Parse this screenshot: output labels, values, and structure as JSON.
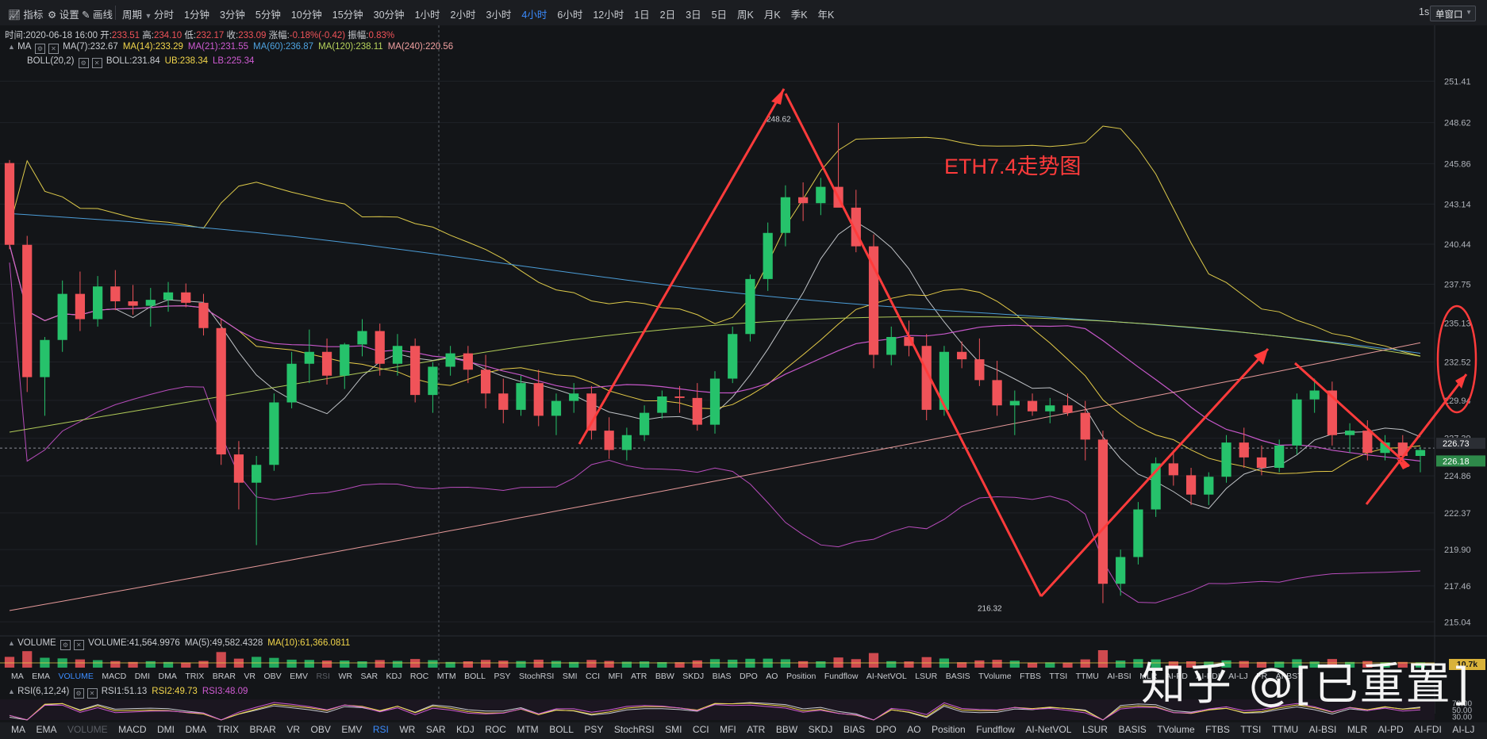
{
  "toolbar": {
    "left": [
      "指标",
      "设置",
      "画线"
    ],
    "period_label": "周期",
    "periods": [
      "分时",
      "1分钟",
      "3分钟",
      "5分钟",
      "10分钟",
      "15分钟",
      "30分钟",
      "1小时",
      "2小时",
      "3小时",
      "4小时",
      "6小时",
      "12小时",
      "1日",
      "2日",
      "3日",
      "5日",
      "周K",
      "月K",
      "季K",
      "年K"
    ],
    "active_period": "4小时",
    "right_label": "1s",
    "window_label": "单窗口"
  },
  "ohlc_line": {
    "time": "时间:2020-06-18 16:00",
    "open_label": "开:",
    "open": "233.51",
    "high_label": "高:",
    "high": "234.10",
    "low_label": "低:",
    "low": "232.17",
    "close_label": "收:",
    "close": "233.09",
    "change_label": "涨幅:",
    "change": "-0.18%(-0.42)",
    "amp_label": "振幅:",
    "amp": "0.83%"
  },
  "ma_line": {
    "name": "MA",
    "items": [
      {
        "text": "MA(7):232.67",
        "color": "#c9ccd1"
      },
      {
        "text": "MA(14):233.29",
        "color": "#f2d64b"
      },
      {
        "text": "MA(21):231.55",
        "color": "#d05bd3"
      },
      {
        "text": "MA(60):236.87",
        "color": "#4ea3e0"
      },
      {
        "text": "MA(120):238.11",
        "color": "#b8d45c"
      },
      {
        "text": "MA(240):220.56",
        "color": "#f0a0a0"
      }
    ]
  },
  "boll_line": {
    "name": "BOLL(20,2)",
    "items": [
      {
        "text": "BOLL:231.84",
        "color": "#c9ccd1"
      },
      {
        "text": "UB:238.34",
        "color": "#f2d64b"
      },
      {
        "text": "LB:225.34",
        "color": "#d05bd3"
      }
    ]
  },
  "annotation": "ETH7.4走势图",
  "chart_data": {
    "type": "candlestick",
    "ylim": [
      214.2,
      252.6
    ],
    "y_ticks": [
      "251.41",
      "248.62",
      "245.86",
      "243.14",
      "240.44",
      "237.75",
      "235.13",
      "232.52",
      "229.94",
      "227.39",
      "224.86",
      "222.37",
      "219.90",
      "217.46",
      "215.04"
    ],
    "current_price_tags": [
      "226.73",
      "226.18"
    ],
    "high_marker": "248.62",
    "low_marker": "216.32",
    "candles": [
      {
        "o": 245.9,
        "h": 246.1,
        "l": 240.1,
        "c": 240.4
      },
      {
        "o": 240.4,
        "h": 241.0,
        "l": 230.5,
        "c": 231.5
      },
      {
        "o": 231.5,
        "h": 234.2,
        "l": 228.9,
        "c": 234.0
      },
      {
        "o": 234.0,
        "h": 238.0,
        "l": 233.2,
        "c": 237.1
      },
      {
        "o": 237.1,
        "h": 238.6,
        "l": 234.6,
        "c": 235.4
      },
      {
        "o": 235.4,
        "h": 238.3,
        "l": 234.9,
        "c": 237.6
      },
      {
        "o": 237.6,
        "h": 238.7,
        "l": 236.0,
        "c": 236.6
      },
      {
        "o": 236.6,
        "h": 237.7,
        "l": 235.7,
        "c": 236.3
      },
      {
        "o": 236.3,
        "h": 237.5,
        "l": 234.9,
        "c": 236.7
      },
      {
        "o": 236.7,
        "h": 237.9,
        "l": 235.9,
        "c": 237.2
      },
      {
        "o": 237.2,
        "h": 237.8,
        "l": 236.2,
        "c": 236.5
      },
      {
        "o": 236.5,
        "h": 237.1,
        "l": 234.3,
        "c": 234.8
      },
      {
        "o": 234.8,
        "h": 235.4,
        "l": 225.6,
        "c": 226.3
      },
      {
        "o": 226.3,
        "h": 227.2,
        "l": 222.6,
        "c": 224.4
      },
      {
        "o": 224.4,
        "h": 226.2,
        "l": 220.2,
        "c": 225.6
      },
      {
        "o": 225.6,
        "h": 230.4,
        "l": 225.2,
        "c": 229.8
      },
      {
        "o": 229.8,
        "h": 233.2,
        "l": 229.4,
        "c": 232.4
      },
      {
        "o": 232.4,
        "h": 234.7,
        "l": 231.1,
        "c": 233.2
      },
      {
        "o": 233.2,
        "h": 234.1,
        "l": 231.0,
        "c": 231.6
      },
      {
        "o": 231.6,
        "h": 233.8,
        "l": 230.7,
        "c": 233.7
      },
      {
        "o": 233.7,
        "h": 235.4,
        "l": 232.9,
        "c": 234.6
      },
      {
        "o": 234.6,
        "h": 235.1,
        "l": 231.6,
        "c": 232.4
      },
      {
        "o": 232.4,
        "h": 234.4,
        "l": 231.6,
        "c": 233.6
      },
      {
        "o": 233.6,
        "h": 234.1,
        "l": 229.8,
        "c": 230.3
      },
      {
        "o": 230.3,
        "h": 232.5,
        "l": 229.1,
        "c": 232.2
      },
      {
        "o": 232.2,
        "h": 233.6,
        "l": 231.6,
        "c": 233.1
      },
      {
        "o": 233.1,
        "h": 233.6,
        "l": 231.1,
        "c": 232.0
      },
      {
        "o": 232.0,
        "h": 233.0,
        "l": 229.4,
        "c": 230.4
      },
      {
        "o": 230.4,
        "h": 231.4,
        "l": 228.4,
        "c": 229.3
      },
      {
        "o": 229.3,
        "h": 231.6,
        "l": 228.9,
        "c": 231.1
      },
      {
        "o": 231.1,
        "h": 232.0,
        "l": 228.2,
        "c": 228.9
      },
      {
        "o": 228.9,
        "h": 230.4,
        "l": 227.6,
        "c": 229.9
      },
      {
        "o": 229.9,
        "h": 231.1,
        "l": 229.1,
        "c": 230.4
      },
      {
        "o": 230.4,
        "h": 230.9,
        "l": 227.3,
        "c": 227.9
      },
      {
        "o": 227.9,
        "h": 228.8,
        "l": 226.0,
        "c": 226.6
      },
      {
        "o": 226.6,
        "h": 228.1,
        "l": 225.9,
        "c": 227.6
      },
      {
        "o": 227.6,
        "h": 229.6,
        "l": 227.2,
        "c": 229.1
      },
      {
        "o": 229.1,
        "h": 230.6,
        "l": 228.7,
        "c": 230.2
      },
      {
        "o": 230.2,
        "h": 230.9,
        "l": 229.1,
        "c": 230.1
      },
      {
        "o": 230.1,
        "h": 231.1,
        "l": 227.9,
        "c": 228.3
      },
      {
        "o": 228.3,
        "h": 231.9,
        "l": 227.7,
        "c": 231.4
      },
      {
        "o": 231.4,
        "h": 234.9,
        "l": 231.1,
        "c": 234.4
      },
      {
        "o": 234.4,
        "h": 238.4,
        "l": 233.9,
        "c": 238.1
      },
      {
        "o": 238.1,
        "h": 241.9,
        "l": 237.3,
        "c": 241.2
      },
      {
        "o": 241.2,
        "h": 244.4,
        "l": 240.3,
        "c": 243.6
      },
      {
        "o": 243.6,
        "h": 244.6,
        "l": 242.0,
        "c": 243.2
      },
      {
        "o": 243.2,
        "h": 244.9,
        "l": 242.4,
        "c": 244.3
      },
      {
        "o": 244.3,
        "h": 248.6,
        "l": 243.1,
        "c": 242.9
      },
      {
        "o": 242.9,
        "h": 244.1,
        "l": 239.9,
        "c": 240.3
      },
      {
        "o": 240.3,
        "h": 241.1,
        "l": 232.1,
        "c": 233.0
      },
      {
        "o": 233.0,
        "h": 234.9,
        "l": 232.3,
        "c": 234.2
      },
      {
        "o": 234.2,
        "h": 235.3,
        "l": 232.9,
        "c": 233.6
      },
      {
        "o": 233.6,
        "h": 234.4,
        "l": 228.6,
        "c": 229.3
      },
      {
        "o": 229.3,
        "h": 233.6,
        "l": 228.9,
        "c": 233.2
      },
      {
        "o": 233.2,
        "h": 233.9,
        "l": 232.1,
        "c": 232.7
      },
      {
        "o": 232.7,
        "h": 234.1,
        "l": 230.9,
        "c": 231.3
      },
      {
        "o": 231.3,
        "h": 232.6,
        "l": 228.9,
        "c": 229.6
      },
      {
        "o": 229.6,
        "h": 230.6,
        "l": 227.6,
        "c": 229.9
      },
      {
        "o": 229.9,
        "h": 230.4,
        "l": 228.9,
        "c": 229.2
      },
      {
        "o": 229.2,
        "h": 230.1,
        "l": 228.4,
        "c": 229.6
      },
      {
        "o": 229.6,
        "h": 230.4,
        "l": 228.9,
        "c": 229.1
      },
      {
        "o": 229.1,
        "h": 229.9,
        "l": 225.9,
        "c": 227.3
      },
      {
        "o": 227.3,
        "h": 227.9,
        "l": 216.3,
        "c": 217.6
      },
      {
        "o": 217.6,
        "h": 219.9,
        "l": 216.8,
        "c": 219.4
      },
      {
        "o": 219.4,
        "h": 223.1,
        "l": 218.9,
        "c": 222.6
      },
      {
        "o": 222.6,
        "h": 226.1,
        "l": 222.1,
        "c": 225.7
      },
      {
        "o": 225.7,
        "h": 226.6,
        "l": 224.2,
        "c": 224.9
      },
      {
        "o": 224.9,
        "h": 225.4,
        "l": 222.9,
        "c": 223.6
      },
      {
        "o": 223.6,
        "h": 225.1,
        "l": 222.9,
        "c": 224.8
      },
      {
        "o": 224.8,
        "h": 227.6,
        "l": 224.4,
        "c": 227.1
      },
      {
        "o": 227.1,
        "h": 228.1,
        "l": 225.4,
        "c": 226.1
      },
      {
        "o": 226.1,
        "h": 226.9,
        "l": 224.9,
        "c": 225.4
      },
      {
        "o": 225.4,
        "h": 227.3,
        "l": 225.1,
        "c": 226.9
      },
      {
        "o": 226.9,
        "h": 230.4,
        "l": 226.3,
        "c": 230.0
      },
      {
        "o": 230.0,
        "h": 231.4,
        "l": 229.1,
        "c": 230.6
      },
      {
        "o": 230.6,
        "h": 231.2,
        "l": 226.9,
        "c": 227.6
      },
      {
        "o": 227.6,
        "h": 228.4,
        "l": 226.4,
        "c": 227.9
      },
      {
        "o": 227.9,
        "h": 228.6,
        "l": 225.9,
        "c": 226.4
      },
      {
        "o": 226.4,
        "h": 227.6,
        "l": 225.9,
        "c": 227.1
      },
      {
        "o": 227.1,
        "h": 227.6,
        "l": 225.6,
        "c": 226.2
      },
      {
        "o": 226.2,
        "h": 226.8,
        "l": 225.1,
        "c": 226.6
      }
    ]
  },
  "volume": {
    "name": "VOLUME",
    "items": [
      {
        "text": "VOLUME:41,564.9976",
        "color": "#c9ccd1"
      },
      {
        "text": "MA(5):49,582.4328",
        "color": "#c9ccd1"
      },
      {
        "text": "MA(10):61,366.0811",
        "color": "#f2d64b"
      }
    ],
    "axis_tag": "10.7k"
  },
  "indicator_tabs": [
    "MA",
    "EMA",
    "VOLUME",
    "MACD",
    "DMI",
    "DMA",
    "TRIX",
    "BRAR",
    "VR",
    "OBV",
    "EMV",
    "RSI",
    "WR",
    "SAR",
    "KDJ",
    "ROC",
    "MTM",
    "BOLL",
    "PSY",
    "StochRSI",
    "SMI",
    "CCI",
    "MFI",
    "ATR",
    "BBW",
    "SKDJ",
    "BIAS",
    "DPO",
    "AO",
    "Position",
    "Fundflow",
    "AI-NetVOL",
    "LSUR",
    "BASIS",
    "TVolume",
    "FTBS",
    "TTSI",
    "TTMU",
    "AI-BSI",
    "MLR",
    "AI-PD",
    "AI-FDI",
    "AI-LJ",
    "FR",
    "AI-BST"
  ],
  "rsi": {
    "name": "RSI(6,12,24)",
    "items": [
      {
        "text": "RSI1:51.13",
        "color": "#c9ccd1"
      },
      {
        "text": "RSI2:49.73",
        "color": "#f2d64b"
      },
      {
        "text": "RSI3:48.09",
        "color": "#d05bd3"
      }
    ],
    "axis_ticks": [
      "70.00",
      "50.00",
      "30.00"
    ]
  },
  "watermark": "知乎 @[已重置]"
}
